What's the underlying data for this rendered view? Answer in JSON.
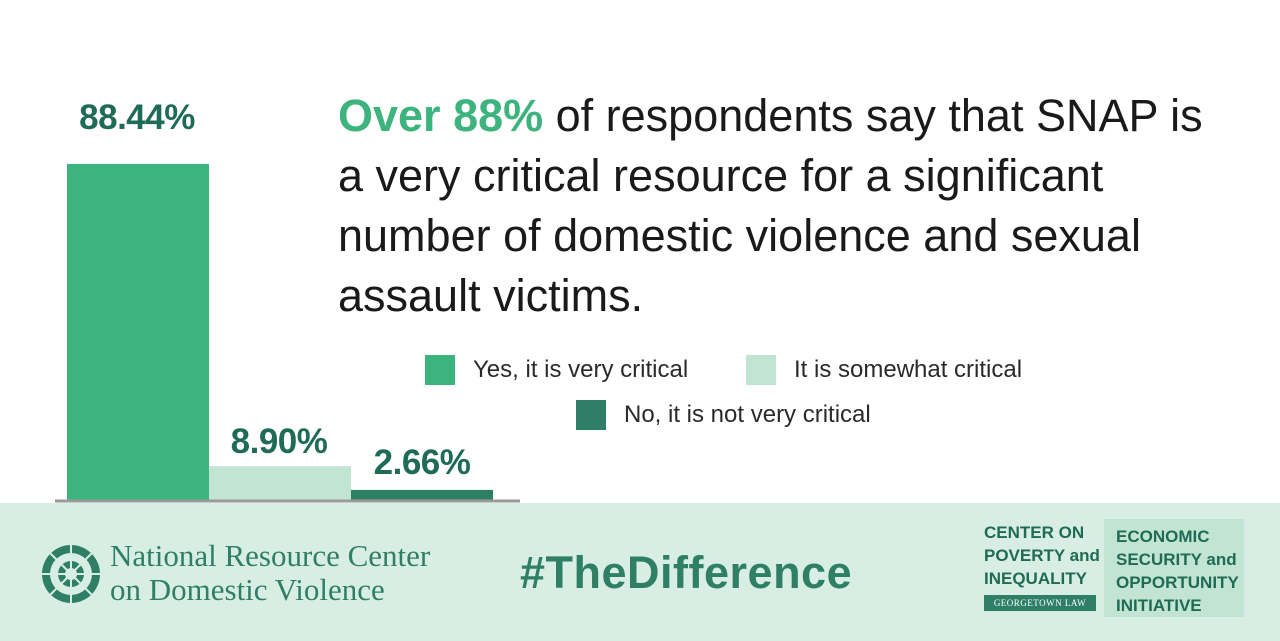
{
  "chart_data": {
    "type": "bar",
    "categories": [
      "Yes, it is very critical",
      "It is somewhat critical",
      "No, it is not very critical"
    ],
    "values": [
      88.44,
      8.9,
      2.66
    ],
    "value_labels": [
      "88.44%",
      "8.90%",
      "2.66%"
    ],
    "colors": [
      "#3db37d",
      "#c2e4d3",
      "#2e7f66"
    ],
    "ylim": [
      0,
      100
    ],
    "legend": [
      "Yes, it is very critical",
      "It is somewhat critical",
      "No, it is not very critical"
    ],
    "legend_position": "right"
  },
  "headline": {
    "highlight": "Over 88%",
    "rest": " of respondents say that SNAP is a very critical resource for a significant number of domestic violence and sexual assault victims."
  },
  "footer": {
    "nrc_line1": "National Resource Center",
    "nrc_line2": "on Domestic Violence",
    "hashtag": "#TheDifference",
    "cpi_lines": [
      "CENTER ON",
      "POVERTY and",
      "INEQUALITY"
    ],
    "cpi_sub": "GEORGETOWN LAW",
    "esoi_lines": [
      "ECONOMIC",
      "SECURITY and",
      "OPPORTUNITY",
      "INITIATIVE"
    ]
  },
  "icons": {
    "nrc_logo": "mosaic-circle-logo-icon"
  }
}
